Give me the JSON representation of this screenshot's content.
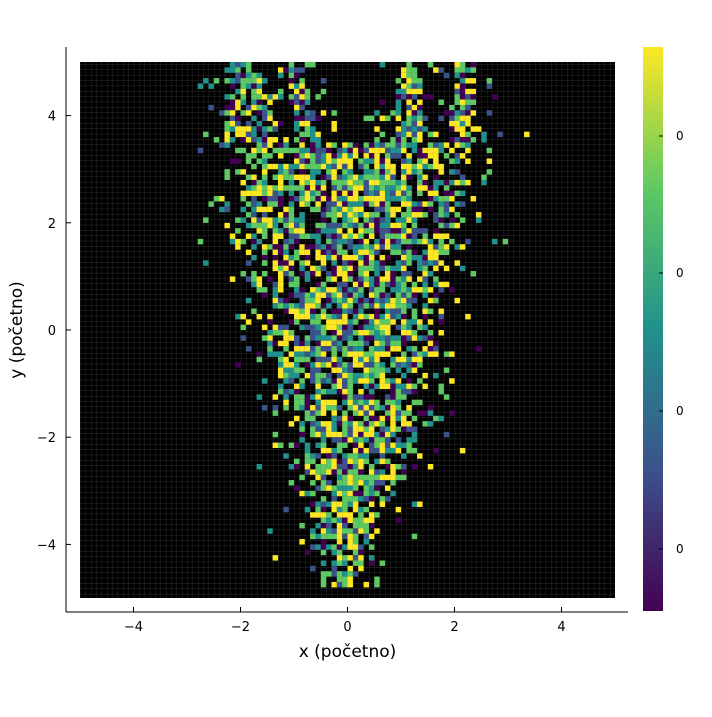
{
  "chart_data": {
    "type": "heatmap",
    "xlabel": "x (početno)",
    "ylabel": "y (početno)",
    "xlim": [
      -5,
      5
    ],
    "ylim": [
      -5,
      5
    ],
    "x_ticks": [
      -4,
      -2,
      0,
      2,
      4
    ],
    "y_ticks": [
      -4,
      -2,
      0,
      2,
      4
    ],
    "x_tick_labels": [
      "−4",
      "−2",
      "0",
      "2",
      "4"
    ],
    "y_tick_labels": [
      "−4",
      "−2",
      "0",
      "2",
      "4"
    ],
    "grid_size": [
      100,
      100
    ],
    "background_value_color": "#000000",
    "colormap": "viridis",
    "colormap_stops": [
      "#440154",
      "#3b528b",
      "#21918c",
      "#5ec962",
      "#fde725"
    ],
    "colorbar_tick_labels": [
      "0",
      "0",
      "0",
      "0"
    ],
    "shape_description": "V-shaped cloud of colored cells; wide top with two arms near x≈±2 at y≈4–5, narrowing to a point near x≈0, y≈−5",
    "shape_profile": [
      {
        "y": 5.0,
        "arms": [
          [
            -2.3,
            -1.7
          ],
          [
            -1.2,
            -0.9
          ],
          [
            1.0,
            1.3
          ],
          [
            2.0,
            2.4
          ]
        ]
      },
      {
        "y": 4.0,
        "arms": [
          [
            -2.3,
            -1.3
          ],
          [
            -1.0,
            -0.6
          ],
          [
            0.9,
            1.5
          ],
          [
            1.9,
            2.4
          ]
        ]
      },
      {
        "y": 3.0,
        "arms": [
          [
            -2.2,
            2.3
          ]
        ]
      },
      {
        "y": 2.0,
        "arms": [
          [
            -2.0,
            2.1
          ]
        ]
      },
      {
        "y": 1.0,
        "arms": [
          [
            -1.8,
            1.7
          ]
        ]
      },
      {
        "y": 0.0,
        "arms": [
          [
            -1.6,
            1.6
          ]
        ]
      },
      {
        "y": -1.0,
        "arms": [
          [
            -1.3,
            1.5
          ]
        ]
      },
      {
        "y": -2.0,
        "arms": [
          [
            -1.0,
            1.3
          ]
        ]
      },
      {
        "y": -3.0,
        "arms": [
          [
            -0.7,
            0.9
          ]
        ]
      },
      {
        "y": -4.0,
        "arms": [
          [
            -0.6,
            0.4
          ]
        ]
      },
      {
        "y": -4.8,
        "arms": [
          [
            -0.15,
            0.1
          ]
        ]
      }
    ]
  }
}
